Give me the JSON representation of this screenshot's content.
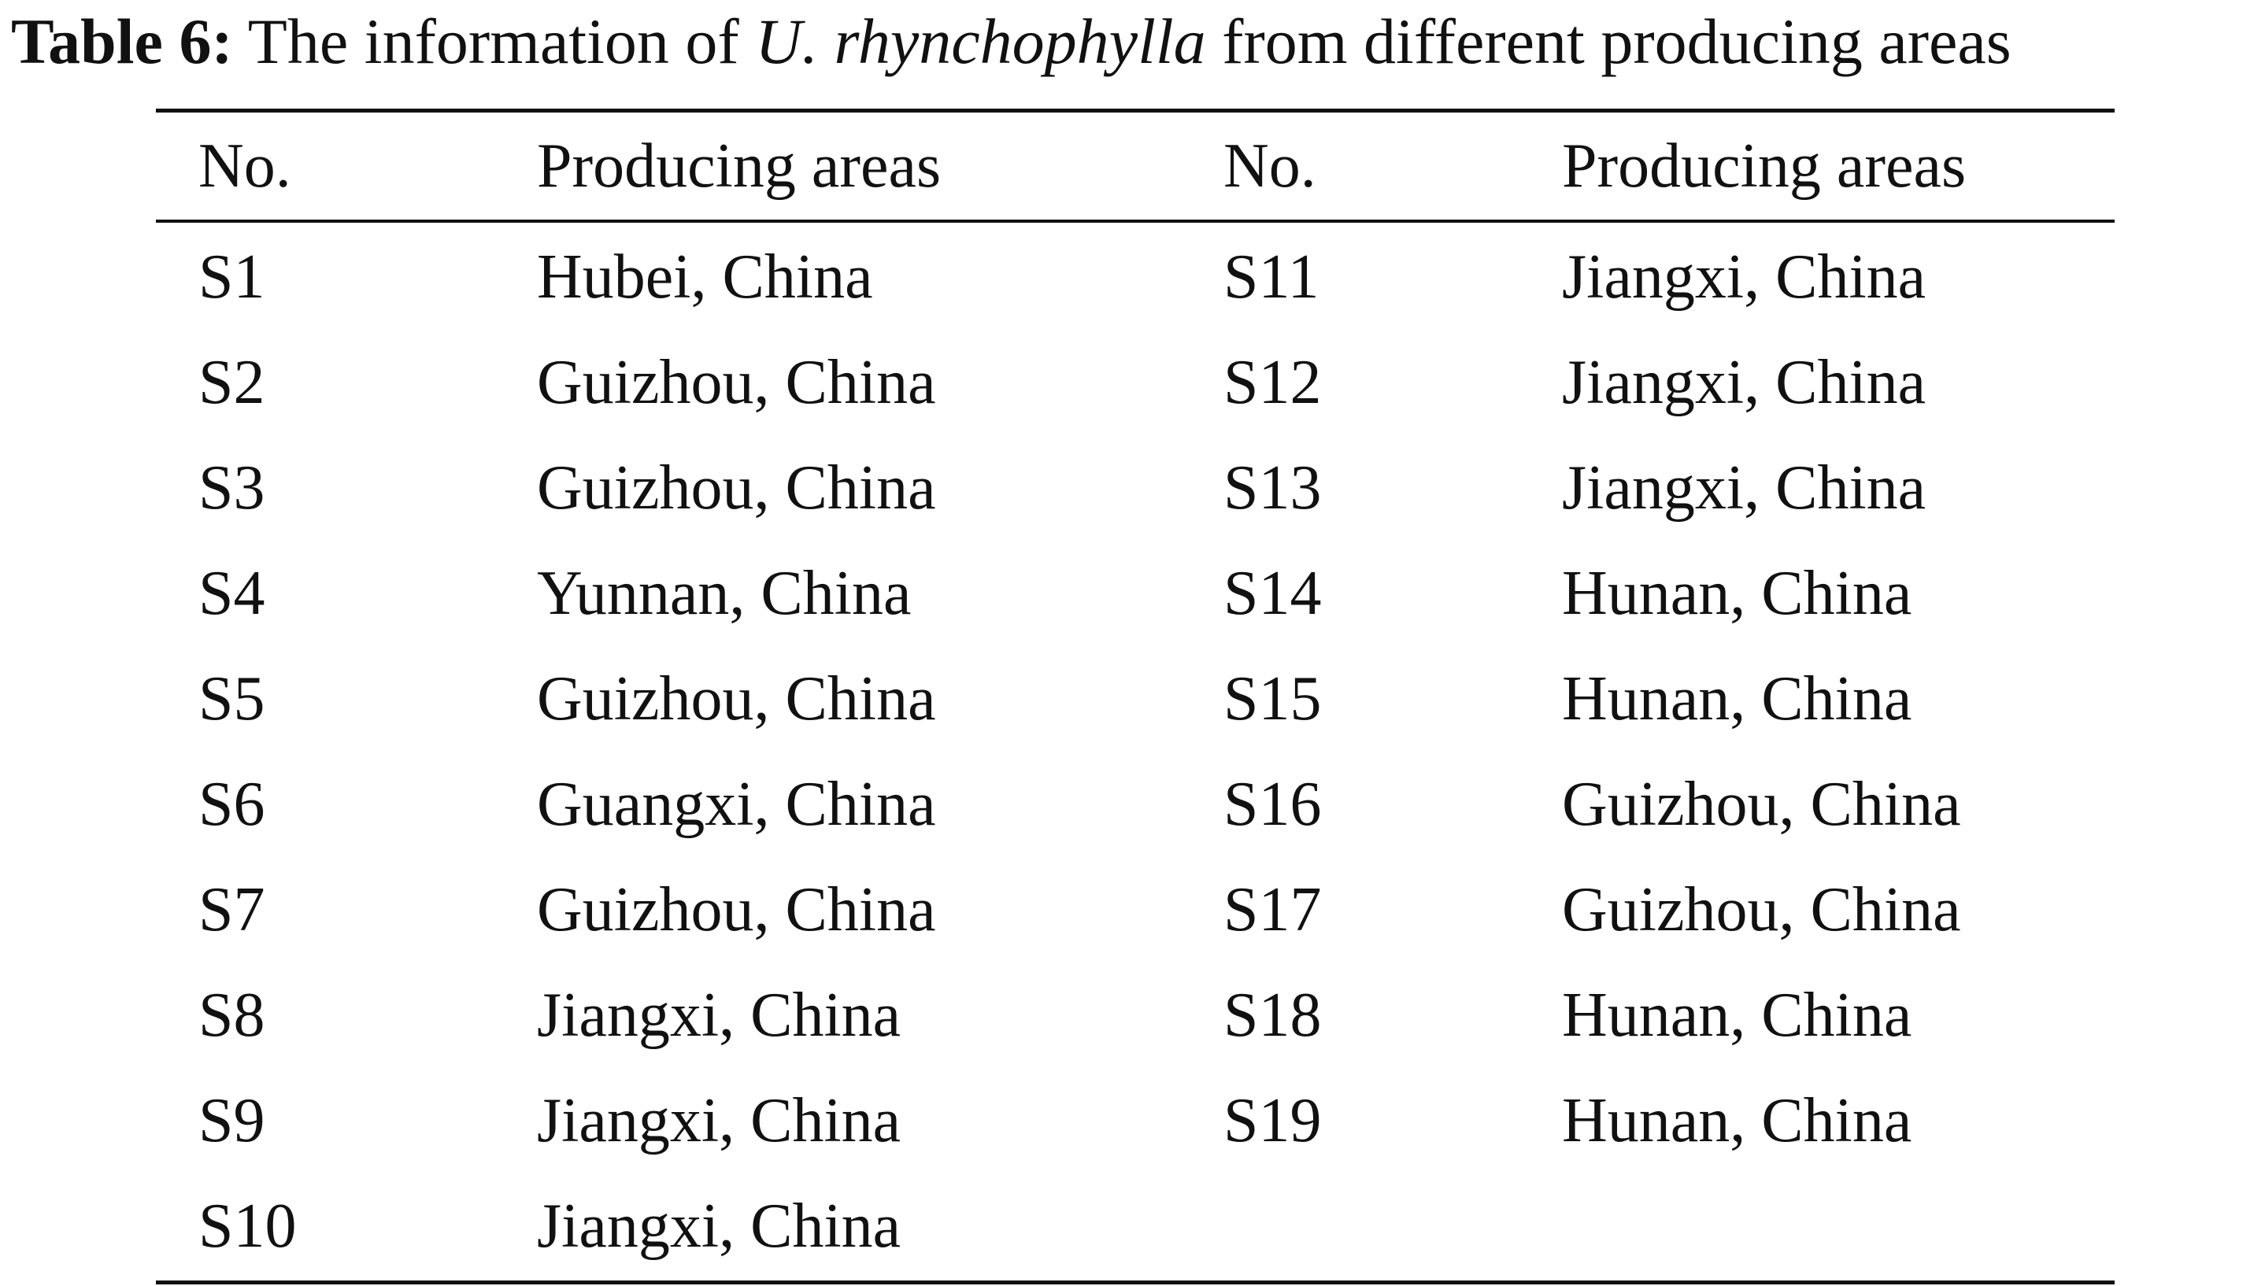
{
  "caption": {
    "label": "Table 6:",
    "text_before": "The information of",
    "species": "U. rhynchophylla",
    "text_after": "from different producing areas"
  },
  "table": {
    "headers": [
      "No.",
      "Producing areas",
      "No.",
      "Producing areas"
    ],
    "rows": [
      [
        "S1",
        "Hubei, China",
        "S11",
        "Jiangxi, China"
      ],
      [
        "S2",
        "Guizhou, China",
        "S12",
        "Jiangxi, China"
      ],
      [
        "S3",
        "Guizhou, China",
        "S13",
        "Jiangxi, China"
      ],
      [
        "S4",
        "Yunnan, China",
        "S14",
        "Hunan, China"
      ],
      [
        "S5",
        "Guizhou, China",
        "S15",
        "Hunan, China"
      ],
      [
        "S6",
        "Guangxi, China",
        "S16",
        "Guizhou, China"
      ],
      [
        "S7",
        "Guizhou, China",
        "S17",
        "Guizhou, China"
      ],
      [
        "S8",
        "Jiangxi, China",
        "S18",
        "Hunan, China"
      ],
      [
        "S9",
        "Jiangxi, China",
        "S19",
        "Hunan, China"
      ],
      [
        "S10",
        "Jiangxi, China",
        "",
        ""
      ]
    ]
  }
}
